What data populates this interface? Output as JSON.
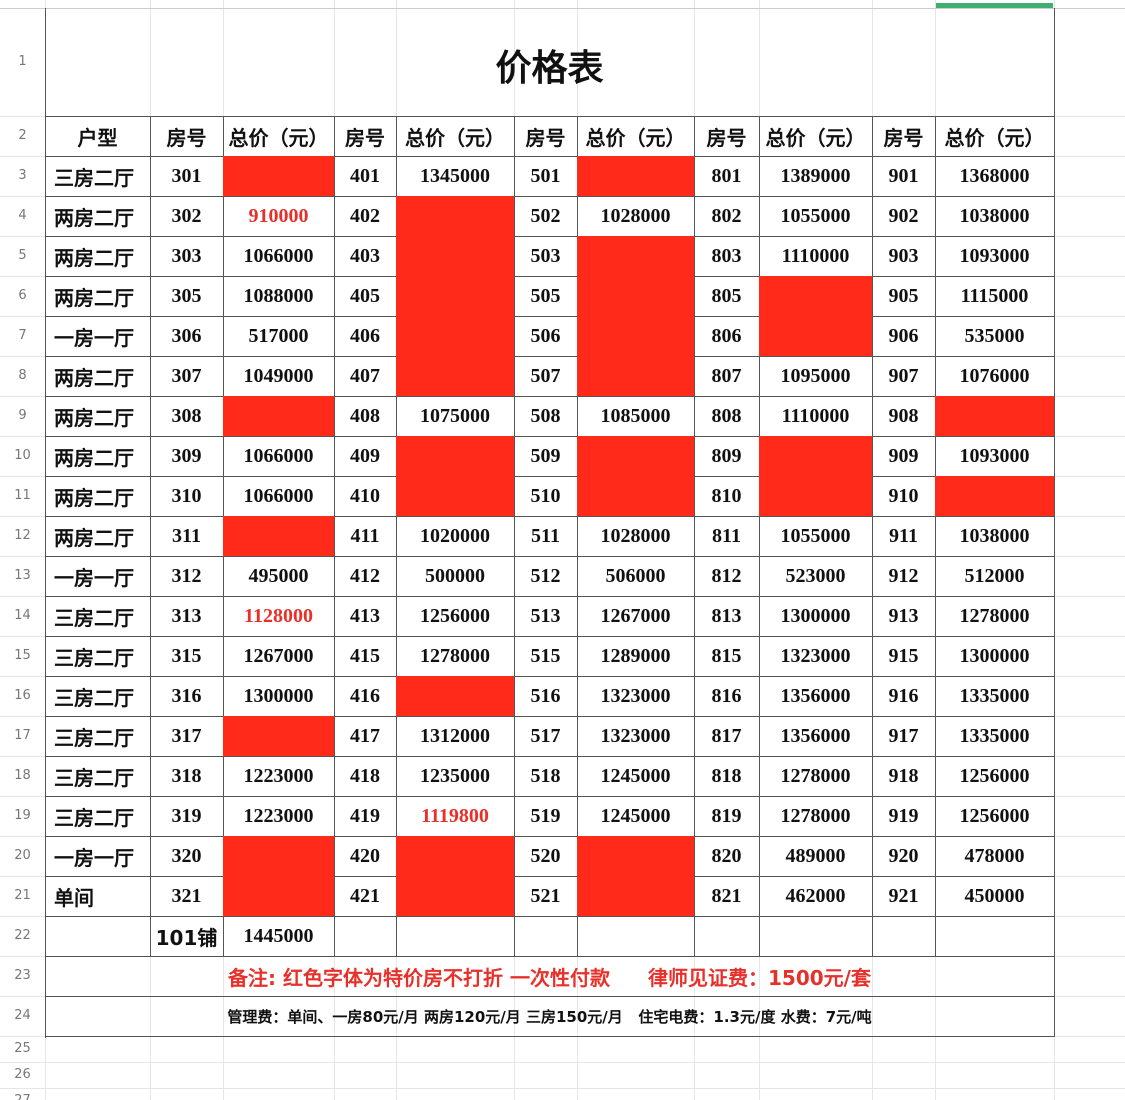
{
  "title": "价格表",
  "header": [
    "户型",
    "房号",
    "总价（元）",
    "房号",
    "总价（元）",
    "房号",
    "总价（元）",
    "房号",
    "总价（元）",
    "房号",
    "总价（元）"
  ],
  "rows": [
    {
      "type": "三房二厅",
      "units": [
        {
          "room": "301",
          "price": null
        },
        {
          "room": "401",
          "price": "1345000"
        },
        {
          "room": "501",
          "price": null
        },
        {
          "room": "801",
          "price": "1389000"
        },
        {
          "room": "901",
          "price": "1368000"
        }
      ]
    },
    {
      "type": "两房二厅",
      "units": [
        {
          "room": "302",
          "price": "910000",
          "price_color": "#e8302a"
        },
        {
          "room": "402",
          "price": null
        },
        {
          "room": "502",
          "price": "1028000"
        },
        {
          "room": "802",
          "price": "1055000"
        },
        {
          "room": "902",
          "price": "1038000"
        }
      ]
    },
    {
      "type": "两房二厅",
      "units": [
        {
          "room": "303",
          "price": "1066000"
        },
        {
          "room": "403",
          "price": null
        },
        {
          "room": "503",
          "price": null
        },
        {
          "room": "803",
          "price": "1110000"
        },
        {
          "room": "903",
          "price": "1093000"
        }
      ]
    },
    {
      "type": "两房二厅",
      "units": [
        {
          "room": "305",
          "price": "1088000"
        },
        {
          "room": "405",
          "price": null
        },
        {
          "room": "505",
          "price": null
        },
        {
          "room": "805",
          "price": null
        },
        {
          "room": "905",
          "price": "1115000"
        }
      ]
    },
    {
      "type": "一房一厅",
      "units": [
        {
          "room": "306",
          "price": "517000"
        },
        {
          "room": "406",
          "price": null
        },
        {
          "room": "506",
          "price": null
        },
        {
          "room": "806",
          "price": null
        },
        {
          "room": "906",
          "price": "535000"
        }
      ]
    },
    {
      "type": "两房二厅",
      "units": [
        {
          "room": "307",
          "price": "1049000"
        },
        {
          "room": "407",
          "price": null
        },
        {
          "room": "507",
          "price": null
        },
        {
          "room": "807",
          "price": "1095000"
        },
        {
          "room": "907",
          "price": "1076000"
        }
      ]
    },
    {
      "type": "两房二厅",
      "units": [
        {
          "room": "308",
          "price": null
        },
        {
          "room": "408",
          "price": "1075000"
        },
        {
          "room": "508",
          "price": "1085000"
        },
        {
          "room": "808",
          "price": "1110000"
        },
        {
          "room": "908",
          "price": null
        }
      ]
    },
    {
      "type": "两房二厅",
      "units": [
        {
          "room": "309",
          "price": "1066000"
        },
        {
          "room": "409",
          "price": null
        },
        {
          "room": "509",
          "price": null
        },
        {
          "room": "809",
          "price": null
        },
        {
          "room": "909",
          "price": "1093000"
        }
      ]
    },
    {
      "type": "两房二厅",
      "units": [
        {
          "room": "310",
          "price": "1066000"
        },
        {
          "room": "410",
          "price": null
        },
        {
          "room": "510",
          "price": null
        },
        {
          "room": "810",
          "price": null
        },
        {
          "room": "910",
          "price": null
        }
      ]
    },
    {
      "type": "两房二厅",
      "units": [
        {
          "room": "311",
          "price": null
        },
        {
          "room": "411",
          "price": "1020000"
        },
        {
          "room": "511",
          "price": "1028000"
        },
        {
          "room": "811",
          "price": "1055000"
        },
        {
          "room": "911",
          "price": "1038000"
        }
      ]
    },
    {
      "type": "一房一厅",
      "units": [
        {
          "room": "312",
          "price": "495000"
        },
        {
          "room": "412",
          "price": "500000"
        },
        {
          "room": "512",
          "price": "506000"
        },
        {
          "room": "812",
          "price": "523000"
        },
        {
          "room": "912",
          "price": "512000"
        }
      ]
    },
    {
      "type": "三房二厅",
      "units": [
        {
          "room": "313",
          "price": "1128000",
          "price_color": "#e8302a"
        },
        {
          "room": "413",
          "price": "1256000"
        },
        {
          "room": "513",
          "price": "1267000"
        },
        {
          "room": "813",
          "price": "1300000"
        },
        {
          "room": "913",
          "price": "1278000"
        }
      ]
    },
    {
      "type": "三房二厅",
      "units": [
        {
          "room": "315",
          "price": "1267000"
        },
        {
          "room": "415",
          "price": "1278000"
        },
        {
          "room": "515",
          "price": "1289000"
        },
        {
          "room": "815",
          "price": "1323000"
        },
        {
          "room": "915",
          "price": "1300000"
        }
      ]
    },
    {
      "type": "三房二厅",
      "units": [
        {
          "room": "316",
          "price": "1300000"
        },
        {
          "room": "416",
          "price": null
        },
        {
          "room": "516",
          "price": "1323000"
        },
        {
          "room": "816",
          "price": "1356000"
        },
        {
          "room": "916",
          "price": "1335000"
        }
      ]
    },
    {
      "type": "三房二厅",
      "units": [
        {
          "room": "317",
          "price": null
        },
        {
          "room": "417",
          "price": "1312000"
        },
        {
          "room": "517",
          "price": "1323000"
        },
        {
          "room": "817",
          "price": "1356000"
        },
        {
          "room": "917",
          "price": "1335000"
        }
      ]
    },
    {
      "type": "三房二厅",
      "units": [
        {
          "room": "318",
          "price": "1223000"
        },
        {
          "room": "418",
          "price": "1235000"
        },
        {
          "room": "518",
          "price": "1245000"
        },
        {
          "room": "818",
          "price": "1278000"
        },
        {
          "room": "918",
          "price": "1256000"
        }
      ]
    },
    {
      "type": "三房二厅",
      "units": [
        {
          "room": "319",
          "price": "1223000"
        },
        {
          "room": "419",
          "price": "1119800",
          "price_color": "#e8302a"
        },
        {
          "room": "519",
          "price": "1245000"
        },
        {
          "room": "819",
          "price": "1278000"
        },
        {
          "room": "919",
          "price": "1256000"
        }
      ]
    },
    {
      "type": "一房一厅",
      "units": [
        {
          "room": "320",
          "price": null
        },
        {
          "room": "420",
          "price": null
        },
        {
          "room": "520",
          "price": null
        },
        {
          "room": "820",
          "price": "489000"
        },
        {
          "room": "920",
          "price": "478000"
        }
      ]
    },
    {
      "type": "单间",
      "units": [
        {
          "room": "321",
          "price": null
        },
        {
          "room": "421",
          "price": null
        },
        {
          "room": "521",
          "price": null
        },
        {
          "room": "821",
          "price": "462000"
        },
        {
          "room": "921",
          "price": "450000"
        }
      ]
    }
  ],
  "shop": {
    "room": "101铺",
    "price": "1445000"
  },
  "note": "备注: 红色字体为特价房不打折 一次性付款",
  "lawyer_fee": "律师见证费：1500元/套",
  "fees": "管理费：单间、一房80元/月 两房120元/月 三房150元/月   住宅电费：1.3元/度 水费：7元/吨",
  "row_numbers": [
    "1",
    "2",
    "3",
    "4",
    "5",
    "6",
    "7",
    "8",
    "9",
    "10",
    "11",
    "12",
    "13",
    "14",
    "15",
    "16",
    "17",
    "18",
    "19",
    "20",
    "21",
    "22",
    "23",
    "24",
    "25",
    "26",
    "27"
  ]
}
